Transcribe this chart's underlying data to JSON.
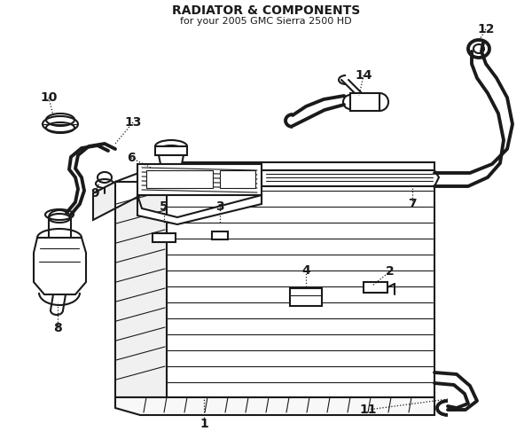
{
  "title": "RADIATOR & COMPONENTS",
  "subtitle": "for your 2005 GMC Sierra 2500 HD",
  "bg": "#ffffff",
  "lc": "#1a1a1a",
  "lw": 1.5,
  "lw_thick": 2.8,
  "lw_thin": 0.8,
  "label_fs": 10,
  "title_fs": 10,
  "sub_fs": 8,
  "dot_leader": true
}
